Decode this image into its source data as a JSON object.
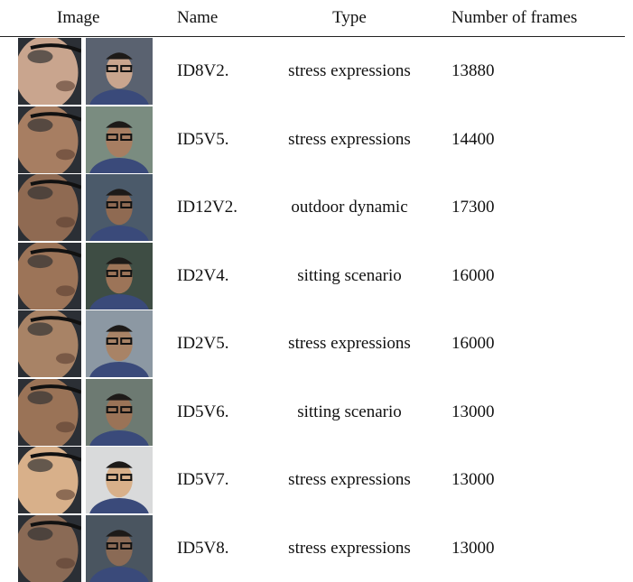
{
  "table": {
    "header": [
      "Image",
      "Name",
      "Type",
      "Number of frames"
    ],
    "rows": [
      [
        "ID8V2.",
        "stress expressions",
        13880
      ],
      [
        "ID5V5.",
        "stress expressions",
        14400
      ],
      [
        "ID12V2.",
        "outdoor dynamic",
        17300
      ],
      [
        "ID2V4.",
        "sitting scenario",
        16000
      ],
      [
        "ID2V5.",
        "stress expressions",
        16000
      ],
      [
        "ID5V6.",
        "sitting scenario",
        13000
      ],
      [
        "ID5V7.",
        "stress expressions",
        13000
      ],
      [
        "ID5V8.",
        "stress expressions",
        13000
      ]
    ]
  }
}
